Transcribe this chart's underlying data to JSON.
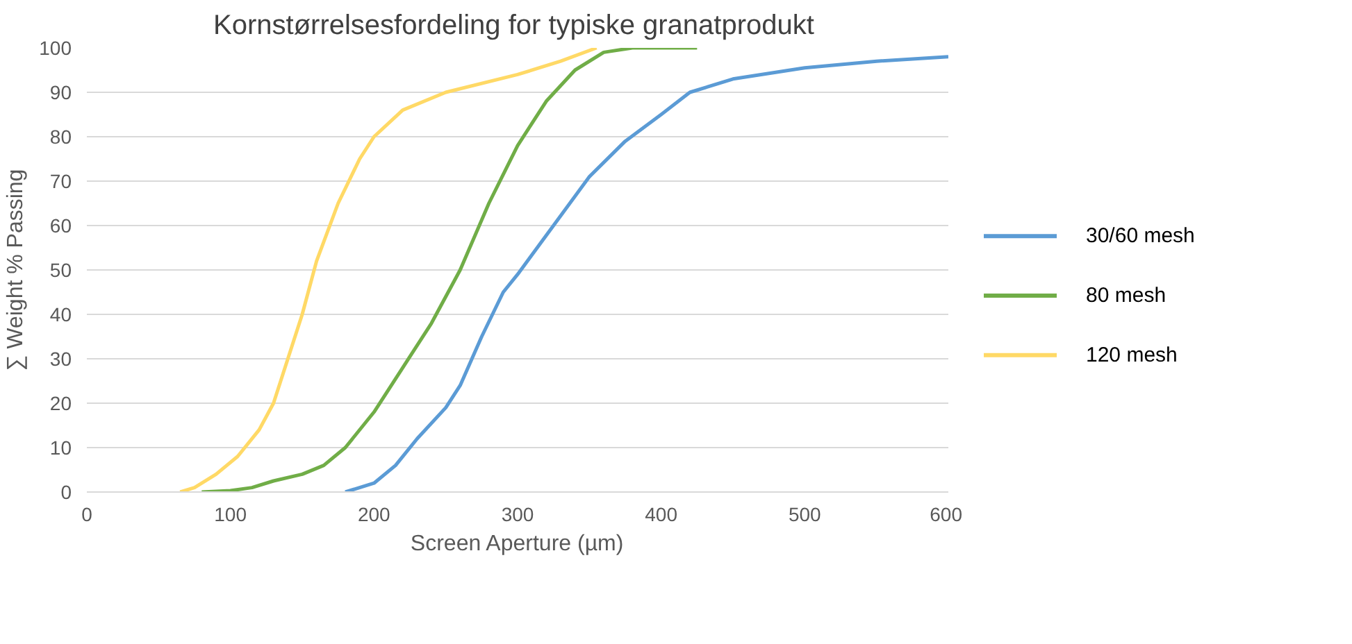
{
  "chart_data": {
    "type": "line",
    "title": "Kornstørrelsesfordeling  for typiske granatprodukt",
    "xlabel": "Screen Aperture (µm)",
    "ylabel": "∑ Weight % Passing",
    "xlim": [
      0,
      600
    ],
    "xticks": [
      0,
      100,
      200,
      300,
      400,
      500,
      600
    ],
    "ylim": [
      0,
      100
    ],
    "yticks": [
      0,
      10,
      20,
      30,
      40,
      50,
      60,
      70,
      80,
      90,
      100
    ],
    "grid": "y",
    "legend": "right",
    "marker": "none",
    "line_style": "solid",
    "series": [
      {
        "name": "30/60 mesh",
        "color": "#5b9bd5",
        "x": [
          180,
          200,
          215,
          230,
          250,
          260,
          275,
          290,
          300,
          325,
          350,
          375,
          400,
          420,
          450,
          500,
          550,
          600
        ],
        "values": [
          0,
          2,
          6,
          12,
          19,
          24,
          35,
          45,
          49,
          60,
          71,
          79,
          85,
          90,
          93,
          95.5,
          97,
          98
        ]
      },
      {
        "name": "80 mesh",
        "color": "#70ad47",
        "x": [
          80,
          100,
          115,
          130,
          150,
          165,
          180,
          200,
          220,
          240,
          260,
          280,
          300,
          320,
          340,
          360,
          380,
          425
        ],
        "values": [
          0,
          0.3,
          1,
          2.5,
          4,
          6,
          10,
          18,
          28,
          38,
          50,
          65,
          78,
          88,
          95,
          99,
          100,
          100
        ]
      },
      {
        "name": "120 mesh",
        "color": "#ffd966",
        "x": [
          65,
          75,
          90,
          105,
          120,
          130,
          140,
          150,
          160,
          175,
          190,
          200,
          220,
          250,
          300,
          330,
          355
        ],
        "values": [
          0,
          1,
          4,
          8,
          14,
          20,
          30,
          40,
          52,
          65,
          75,
          80,
          86,
          90,
          94,
          97,
          100
        ]
      }
    ]
  }
}
